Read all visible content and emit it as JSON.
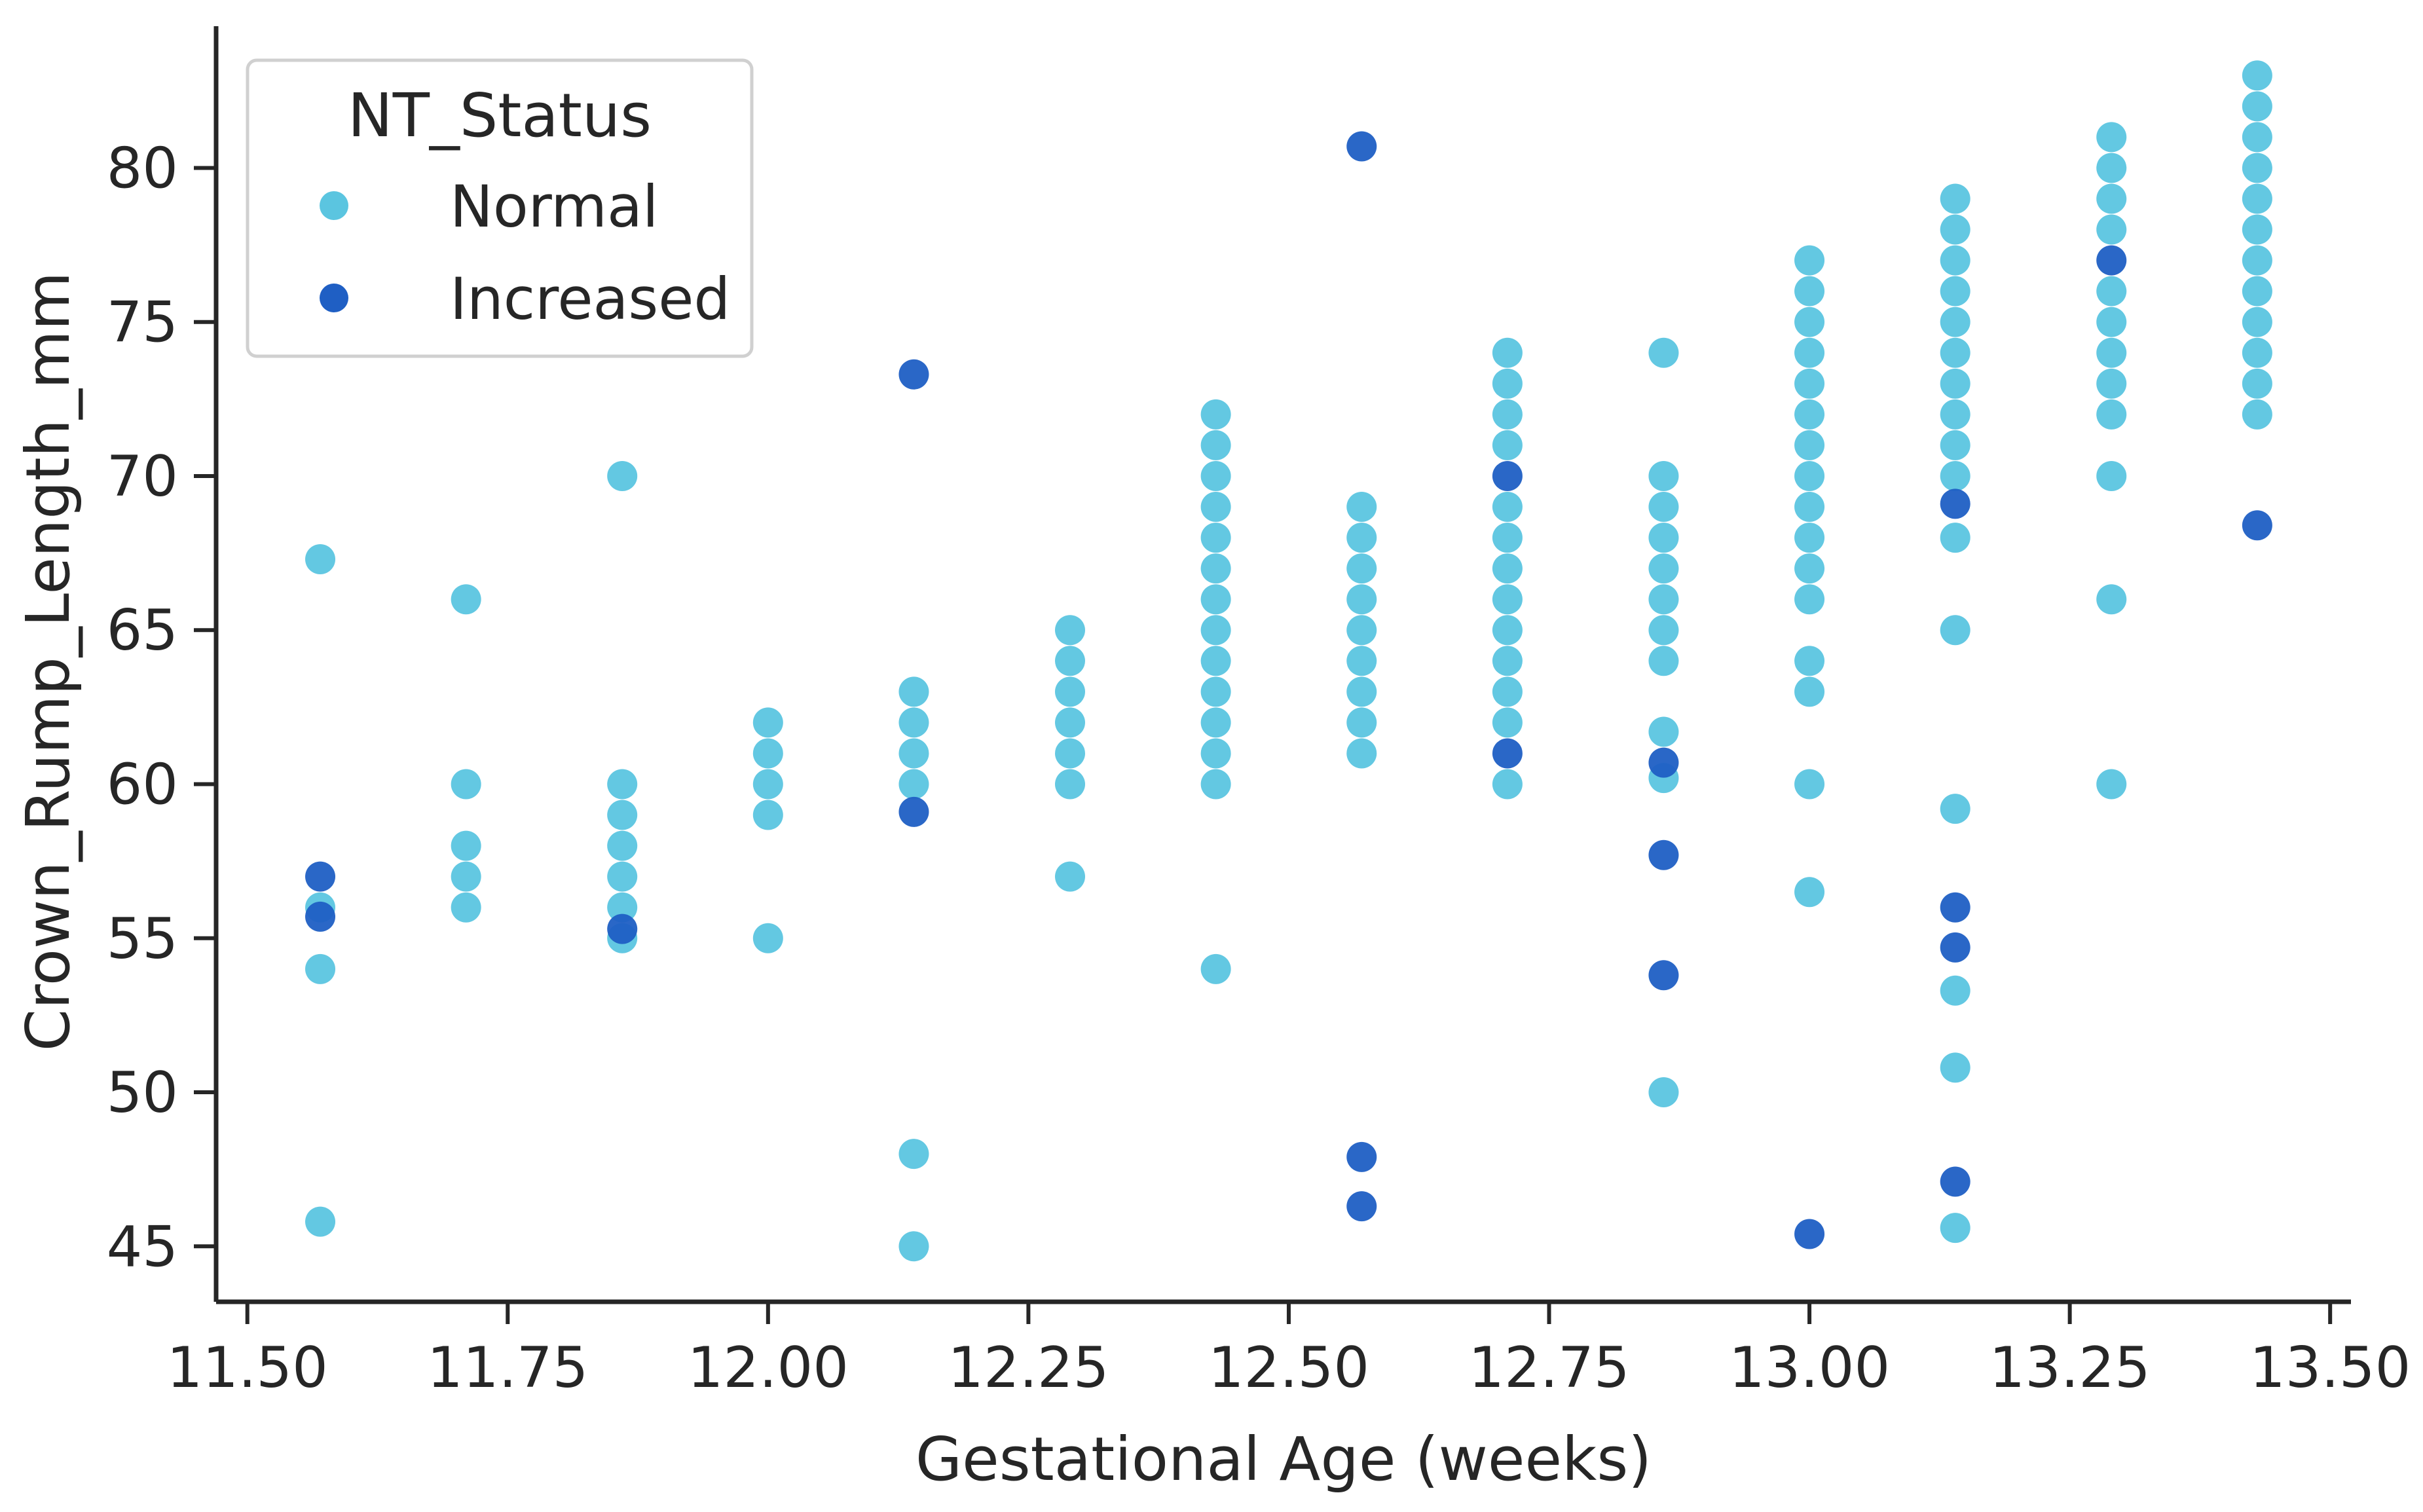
{
  "chart_data": {
    "type": "scatter",
    "title": "",
    "xlabel": "Gestational Age (weeks)",
    "ylabel": "Crown_Rump_Length_mm",
    "xlim": [
      11.47,
      13.52
    ],
    "ylim": [
      43.2,
      84.6
    ],
    "x_ticks": [
      11.5,
      11.75,
      12.0,
      12.25,
      12.5,
      12.75,
      13.0,
      13.25,
      13.5
    ],
    "x_tick_labels": [
      "11.50",
      "11.75",
      "12.00",
      "12.25",
      "12.50",
      "12.75",
      "13.00",
      "13.25",
      "13.50"
    ],
    "y_ticks": [
      45,
      50,
      55,
      60,
      65,
      70,
      75,
      80
    ],
    "y_tick_labels": [
      "45",
      "50",
      "55",
      "60",
      "65",
      "70",
      "75",
      "80"
    ],
    "grid": false,
    "legend": {
      "title": "NT_Status",
      "position": "top-left",
      "entries": [
        {
          "label": "Normal",
          "color": "#5bc5e0"
        },
        {
          "label": "Increased",
          "color": "#1f5fc4"
        }
      ]
    },
    "series": [
      {
        "name": "Normal",
        "color": "#5bc5e0",
        "points": [
          [
            11.57,
            67.3
          ],
          [
            11.57,
            56
          ],
          [
            11.57,
            54
          ],
          [
            11.57,
            45.8
          ],
          [
            11.71,
            66
          ],
          [
            11.71,
            60
          ],
          [
            11.71,
            58
          ],
          [
            11.71,
            57
          ],
          [
            11.71,
            56
          ],
          [
            11.86,
            70
          ],
          [
            11.86,
            60
          ],
          [
            11.86,
            59
          ],
          [
            11.86,
            58
          ],
          [
            11.86,
            57
          ],
          [
            11.86,
            56
          ],
          [
            11.86,
            55
          ],
          [
            12.0,
            62
          ],
          [
            12.0,
            61
          ],
          [
            12.0,
            60
          ],
          [
            12.0,
            59
          ],
          [
            12.0,
            55
          ],
          [
            12.14,
            63
          ],
          [
            12.14,
            62
          ],
          [
            12.14,
            61
          ],
          [
            12.14,
            60
          ],
          [
            12.14,
            48
          ],
          [
            12.14,
            45
          ],
          [
            12.29,
            65
          ],
          [
            12.29,
            64
          ],
          [
            12.29,
            63
          ],
          [
            12.29,
            62
          ],
          [
            12.29,
            61
          ],
          [
            12.29,
            60
          ],
          [
            12.29,
            57
          ],
          [
            12.43,
            72
          ],
          [
            12.43,
            71
          ],
          [
            12.43,
            70
          ],
          [
            12.43,
            69
          ],
          [
            12.43,
            68
          ],
          [
            12.43,
            67
          ],
          [
            12.43,
            66
          ],
          [
            12.43,
            65
          ],
          [
            12.43,
            64
          ],
          [
            12.43,
            63
          ],
          [
            12.43,
            62
          ],
          [
            12.43,
            61
          ],
          [
            12.43,
            60
          ],
          [
            12.43,
            54
          ],
          [
            12.57,
            69
          ],
          [
            12.57,
            68
          ],
          [
            12.57,
            67
          ],
          [
            12.57,
            66
          ],
          [
            12.57,
            65
          ],
          [
            12.57,
            64
          ],
          [
            12.57,
            63
          ],
          [
            12.57,
            62
          ],
          [
            12.57,
            61
          ],
          [
            12.71,
            74
          ],
          [
            12.71,
            73
          ],
          [
            12.71,
            72
          ],
          [
            12.71,
            71
          ],
          [
            12.71,
            69
          ],
          [
            12.71,
            68
          ],
          [
            12.71,
            67
          ],
          [
            12.71,
            66
          ],
          [
            12.71,
            65
          ],
          [
            12.71,
            64
          ],
          [
            12.71,
            63
          ],
          [
            12.71,
            62
          ],
          [
            12.71,
            60
          ],
          [
            12.86,
            74
          ],
          [
            12.86,
            70
          ],
          [
            12.86,
            69
          ],
          [
            12.86,
            68
          ],
          [
            12.86,
            67
          ],
          [
            12.86,
            66
          ],
          [
            12.86,
            65
          ],
          [
            12.86,
            64
          ],
          [
            12.86,
            61.7
          ],
          [
            12.86,
            60.2
          ],
          [
            12.86,
            50
          ],
          [
            13.0,
            77
          ],
          [
            13.0,
            76
          ],
          [
            13.0,
            75
          ],
          [
            13.0,
            74
          ],
          [
            13.0,
            73
          ],
          [
            13.0,
            72
          ],
          [
            13.0,
            71
          ],
          [
            13.0,
            70
          ],
          [
            13.0,
            69
          ],
          [
            13.0,
            68
          ],
          [
            13.0,
            67
          ],
          [
            13.0,
            66
          ],
          [
            13.0,
            64
          ],
          [
            13.0,
            63
          ],
          [
            13.0,
            60
          ],
          [
            13.0,
            56.5
          ],
          [
            13.14,
            79
          ],
          [
            13.14,
            78
          ],
          [
            13.14,
            77
          ],
          [
            13.14,
            76
          ],
          [
            13.14,
            75
          ],
          [
            13.14,
            74
          ],
          [
            13.14,
            73
          ],
          [
            13.14,
            72
          ],
          [
            13.14,
            71
          ],
          [
            13.14,
            70
          ],
          [
            13.14,
            68
          ],
          [
            13.14,
            65
          ],
          [
            13.14,
            59.2
          ],
          [
            13.14,
            53.3
          ],
          [
            13.14,
            50.8
          ],
          [
            13.14,
            45.6
          ],
          [
            13.29,
            81
          ],
          [
            13.29,
            80
          ],
          [
            13.29,
            79
          ],
          [
            13.29,
            78
          ],
          [
            13.29,
            76
          ],
          [
            13.29,
            75
          ],
          [
            13.29,
            74
          ],
          [
            13.29,
            73
          ],
          [
            13.29,
            72
          ],
          [
            13.29,
            70
          ],
          [
            13.29,
            66
          ],
          [
            13.29,
            60
          ],
          [
            13.43,
            83
          ],
          [
            13.43,
            82
          ],
          [
            13.43,
            81
          ],
          [
            13.43,
            80
          ],
          [
            13.43,
            79
          ],
          [
            13.43,
            78
          ],
          [
            13.43,
            77
          ],
          [
            13.43,
            76
          ],
          [
            13.43,
            75
          ],
          [
            13.43,
            74
          ],
          [
            13.43,
            73
          ],
          [
            13.43,
            72
          ]
        ]
      },
      {
        "name": "Increased",
        "color": "#1f5fc4",
        "points": [
          [
            11.57,
            57
          ],
          [
            11.57,
            55.7
          ],
          [
            11.86,
            55.3
          ],
          [
            12.14,
            73.3
          ],
          [
            12.14,
            59.1
          ],
          [
            12.57,
            80.7
          ],
          [
            12.57,
            47.9
          ],
          [
            12.57,
            46.3
          ],
          [
            12.71,
            70
          ],
          [
            12.71,
            61
          ],
          [
            12.86,
            60.7
          ],
          [
            12.86,
            57.7
          ],
          [
            12.86,
            53.8
          ],
          [
            13.0,
            45.4
          ],
          [
            13.14,
            69.1
          ],
          [
            13.14,
            56
          ],
          [
            13.14,
            54.7
          ],
          [
            13.14,
            47.1
          ],
          [
            13.29,
            77
          ],
          [
            13.43,
            68.4
          ]
        ]
      }
    ]
  }
}
